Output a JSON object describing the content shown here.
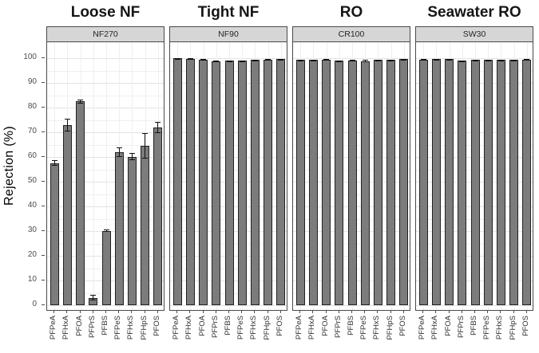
{
  "figure_title": "",
  "chart_data": {
    "type": "bar",
    "title": "",
    "xlabel": "",
    "ylabel": "Rejection (%)",
    "ylim": [
      0,
      100
    ],
    "y_ticks": [
      0,
      10,
      20,
      30,
      40,
      50,
      60,
      70,
      80,
      90,
      100
    ],
    "grid": true,
    "legend": "none",
    "error_bars": true,
    "categories": [
      "PFPeA",
      "PFHxA",
      "PFOA",
      "PFPrS",
      "PFBS",
      "PFPeS",
      "PFHxS",
      "PFHpS",
      "PFOS"
    ],
    "panels": [
      {
        "group_title": "Loose NF",
        "membrane": "NF270",
        "values": [
          57.5,
          73,
          82.5,
          3,
          30,
          62,
          60,
          64.5,
          72
        ],
        "errors": [
          1.2,
          2.5,
          0.8,
          1.2,
          0.5,
          2.0,
          1.5,
          5.2,
          2.2
        ]
      },
      {
        "group_title": "Tight NF",
        "membrane": "NF90",
        "values": [
          99.9,
          99.6,
          99.5,
          98.6,
          99.0,
          99.0,
          99.2,
          99.5,
          99.6
        ],
        "errors": [
          0.1,
          0.3,
          0.3,
          0.4,
          0.1,
          0.1,
          0.1,
          0.3,
          0.1
        ]
      },
      {
        "group_title": "RO",
        "membrane": "CR100",
        "values": [
          99.2,
          99.4,
          99.3,
          98.9,
          99.1,
          98.8,
          99.2,
          99.3,
          99.7
        ],
        "errors": [
          0.3,
          0.1,
          0.4,
          0.1,
          0.3,
          0.5,
          0.1,
          0.1,
          0.1
        ]
      },
      {
        "group_title": "Seawater RO",
        "membrane": "SW30",
        "values": [
          99.5,
          99.6,
          99.6,
          99.0,
          99.3,
          99.2,
          99.2,
          99.4,
          99.5
        ],
        "errors": [
          0.1,
          0.1,
          0.1,
          0.1,
          0.1,
          0.1,
          0.1,
          0.1,
          0.1
        ]
      }
    ]
  },
  "colors": {
    "bar_fill": "#7c7c7c",
    "bar_stroke": "#222222",
    "strip_bg": "#d6d6d6",
    "border": "#4a4a4a",
    "grid_major": "#e3e3e3",
    "grid_minor": "#efefef",
    "tick_color": "#4d4d4d",
    "err_color": "#111111"
  }
}
